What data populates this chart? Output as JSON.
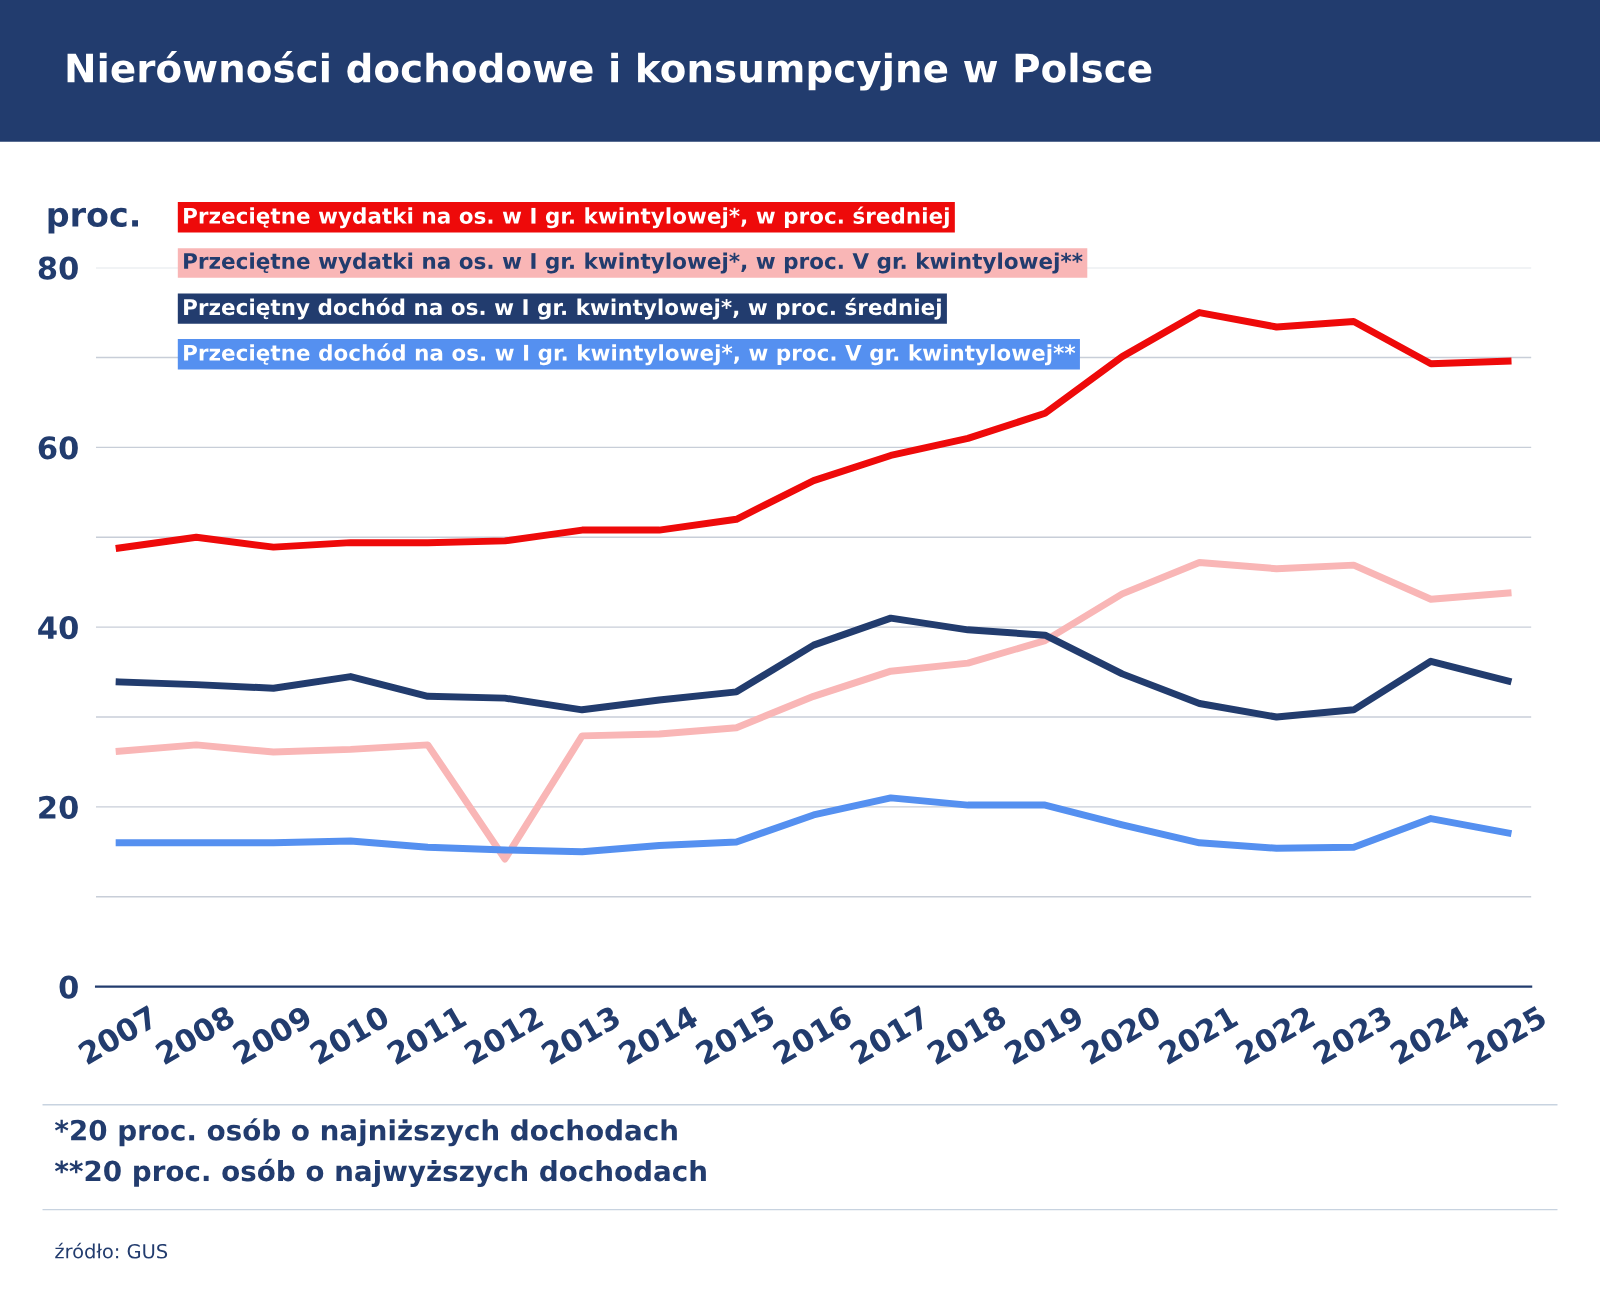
{
  "chart_data": {
    "type": "line",
    "title": "Nierówności dochodowe i konsumpcyjne w Polsce",
    "ylabel": "proc.",
    "categories": [
      "2007",
      "2008",
      "2009",
      "2010",
      "2011",
      "2012",
      "2013",
      "2014",
      "2015",
      "2016",
      "2017",
      "2018",
      "2019",
      "2020",
      "2021",
      "2022",
      "2023",
      "2024",
      "2025"
    ],
    "series": [
      {
        "name": "Przeciętne wydatki na os. w I gr. kwintylowej*, w proc. średniej",
        "color": "#ee0a0a",
        "values": [
          48.8,
          50.0,
          48.9,
          49.4,
          49.4,
          49.6,
          50.8,
          50.8,
          52.0,
          56.3,
          59.1,
          61.0,
          63.8,
          70.1,
          75.0,
          73.4,
          74.0,
          69.3,
          69.6
        ]
      },
      {
        "name": "Przeciętne wydatki na os. w I gr. kwintylowej*, w proc. V gr. kwintylowej**",
        "color": "#f9b6b6",
        "values": [
          26.2,
          26.9,
          26.1,
          26.4,
          26.9,
          14.2,
          27.9,
          28.1,
          28.8,
          32.3,
          35.1,
          36.0,
          38.5,
          43.7,
          47.2,
          46.5,
          46.9,
          43.1,
          43.8
        ]
      },
      {
        "name": "Przeciętny dochód na os. w I gr. kwintylowej*, w proc. średniej",
        "color": "#223c6e",
        "values": [
          33.9,
          33.6,
          33.2,
          34.5,
          32.3,
          32.1,
          30.8,
          31.9,
          32.8,
          38.0,
          41.0,
          39.7,
          39.1,
          34.8,
          31.5,
          30.0,
          30.8,
          36.2,
          34.0
        ]
      },
      {
        "name": "Przeciętne dochód na os. w I gr. kwintylowej*, w proc. V gr. kwintylowej**",
        "color": "#5590f0",
        "values": [
          16.0,
          16.0,
          16.0,
          16.2,
          15.5,
          15.2,
          15.0,
          15.7,
          16.1,
          19.1,
          21.0,
          20.2,
          20.2,
          18.0,
          16.0,
          15.4,
          15.5,
          18.7,
          17.1
        ]
      }
    ],
    "ylim": [
      0,
      80
    ],
    "yticks": [
      0,
      {
        "value": 10,
        "label": null
      },
      20,
      {
        "value": 30,
        "label": null
      },
      40,
      {
        "value": 50,
        "label": null
      },
      60,
      {
        "value": 70,
        "label": null
      },
      80
    ],
    "grid": "y",
    "legend": "top left",
    "marker": "none",
    "line_style": "solid",
    "annotations": [
      "*20 proc. osób o najniższych dochodach",
      "**20 proc. osób o najwyższych dochodach",
      "źródło: GUS"
    ]
  }
}
